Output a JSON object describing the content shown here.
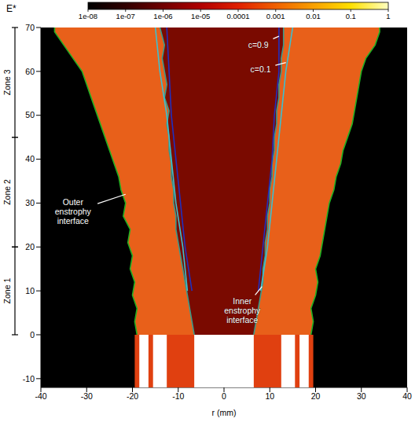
{
  "chart_data": {
    "type": "field",
    "x_label": "r (mm)",
    "xlim": [
      -40,
      40
    ],
    "xticks": [
      -40,
      -30,
      -20,
      -10,
      0,
      10,
      20,
      30,
      40
    ],
    "ylim": [
      -12,
      70
    ],
    "yticks": [
      -10,
      0,
      10,
      20,
      30,
      40,
      50,
      60,
      70
    ],
    "colorbar": {
      "label": "E*",
      "log": true,
      "range": [
        1e-08,
        1
      ],
      "ticks": [
        {
          "value": 1e-08,
          "label": "1e-08"
        },
        {
          "value": 1e-07,
          "label": "1e-07"
        },
        {
          "value": 1e-06,
          "label": "1e-06"
        },
        {
          "value": 1e-05,
          "label": "1e-05"
        },
        0.0001,
        0.001,
        0.01,
        0.1,
        1
      ]
    },
    "zones": [
      {
        "label": "Zone 1",
        "range": [
          0,
          20
        ]
      },
      {
        "label": "Zone 2",
        "range": [
          20,
          45
        ]
      },
      {
        "label": "Zone 3",
        "range": [
          45,
          70
        ]
      }
    ],
    "inlet": {
      "range": [
        -19.5,
        19.5
      ],
      "z_range": [
        -12,
        0
      ],
      "bands": [
        [
          -18.5,
          -16.5
        ],
        [
          -15.5,
          -12.5
        ],
        [
          -6.5,
          6.5
        ],
        [
          12.5,
          15.5
        ],
        [
          16.5,
          18.5
        ]
      ]
    },
    "series": [
      {
        "name": "Outer enstrophy interface",
        "color": "#22b022",
        "branches": [
          {
            "x": [
              -19,
              -19.5,
              -19,
              -20,
              -19.5,
              -20.5,
              -20,
              -21,
              -20.5,
              -22,
              -21.5,
              -22.5,
              -23,
              -24,
              -25,
              -26,
              -27,
              -28,
              -29,
              -30,
              -31,
              -33,
              -35,
              -37,
              -37
            ],
            "y": [
              0,
              3,
              6,
              9,
              12,
              15,
              18,
              21,
              24,
              27,
              30,
              33,
              36,
              39,
              42,
              45,
              48,
              51,
              54,
              57,
              60,
              63,
              66,
              69,
              70
            ]
          },
          {
            "x": [
              19,
              19.5,
              19,
              20,
              20.5,
              20,
              21,
              21.5,
              22,
              22.5,
              23,
              24,
              24.5,
              25.5,
              26,
              27,
              28,
              28.5,
              29,
              29.5,
              30,
              31,
              33,
              34,
              34
            ],
            "y": [
              0,
              3,
              6,
              9,
              12,
              15,
              18,
              21,
              24,
              27,
              30,
              33,
              36,
              39,
              42,
              45,
              48,
              51,
              54,
              57,
              60,
              63,
              66,
              69,
              70
            ]
          }
        ]
      },
      {
        "name": "Inner enstrophy interface",
        "color": "#3a9a8a",
        "branches": [
          {
            "x": [
              -6.5,
              -7,
              -7.5,
              -8,
              -8.5,
              -9,
              -9.5,
              -10,
              -10.5,
              -10.5,
              -11,
              -11,
              -11.5,
              -11.5,
              -12,
              -12,
              -12.5,
              -12,
              -13,
              -12.5,
              -13,
              -13.5,
              -13,
              -14
            ],
            "y": [
              0,
              3,
              6,
              9,
              12,
              15,
              18,
              21,
              24,
              27,
              30,
              33,
              36,
              39,
              42,
              45,
              48,
              51,
              54,
              57,
              60,
              63,
              66,
              70
            ]
          },
          {
            "x": [
              6.5,
              7,
              7.5,
              8,
              8.5,
              8.5,
              9,
              9,
              9.5,
              9.5,
              10,
              10,
              10.5,
              10.5,
              11,
              11,
              11.5,
              11.5,
              12,
              12,
              12.5,
              12.5,
              13,
              13
            ],
            "y": [
              0,
              3,
              6,
              9,
              12,
              15,
              18,
              21,
              24,
              27,
              30,
              33,
              36,
              39,
              42,
              45,
              48,
              51,
              54,
              57,
              60,
              63,
              66,
              70
            ]
          }
        ]
      },
      {
        "name": "c=0.1",
        "color": "#3cc0d0",
        "branches": [
          {
            "x": [
              -8,
              -9,
              -10.5,
              -11.5,
              -12.5,
              -14,
              -15
            ],
            "y": [
              10,
              20,
              30,
              40,
              50,
              60,
              70
            ]
          },
          {
            "x": [
              8,
              9.5,
              10.5,
              11.5,
              12.5,
              13.5,
              15
            ],
            "y": [
              10,
              20,
              30,
              40,
              50,
              60,
              70
            ]
          }
        ]
      },
      {
        "name": "c=0.9",
        "color": "#2030c0",
        "branches": [
          {
            "x": [
              -7,
              -8.5,
              -9.5,
              -10.5,
              -11.5,
              -12,
              -12.5
            ],
            "y": [
              10,
              20,
              30,
              40,
              50,
              60,
              70
            ]
          },
          {
            "x": [
              7.5,
              8.5,
              9.5,
              10.5,
              11,
              12,
              12
            ],
            "y": [
              10,
              20,
              30,
              40,
              50,
              60,
              70
            ]
          }
        ]
      }
    ],
    "annotations": [
      {
        "text": "Outer enstrophy interface",
        "x": -33,
        "y": 28,
        "target": [
          -21.5,
          32
        ]
      },
      {
        "text": "Inner enstrophy interface",
        "x": 4,
        "y": 5.5,
        "target": [
          8.3,
          11
        ]
      },
      {
        "text": "c=0.9",
        "x": 7.5,
        "y": 66,
        "target": [
          12,
          68
        ]
      },
      {
        "text": "c=0.1",
        "x": 8,
        "y": 60.5,
        "target": [
          13.5,
          62
        ]
      }
    ]
  }
}
